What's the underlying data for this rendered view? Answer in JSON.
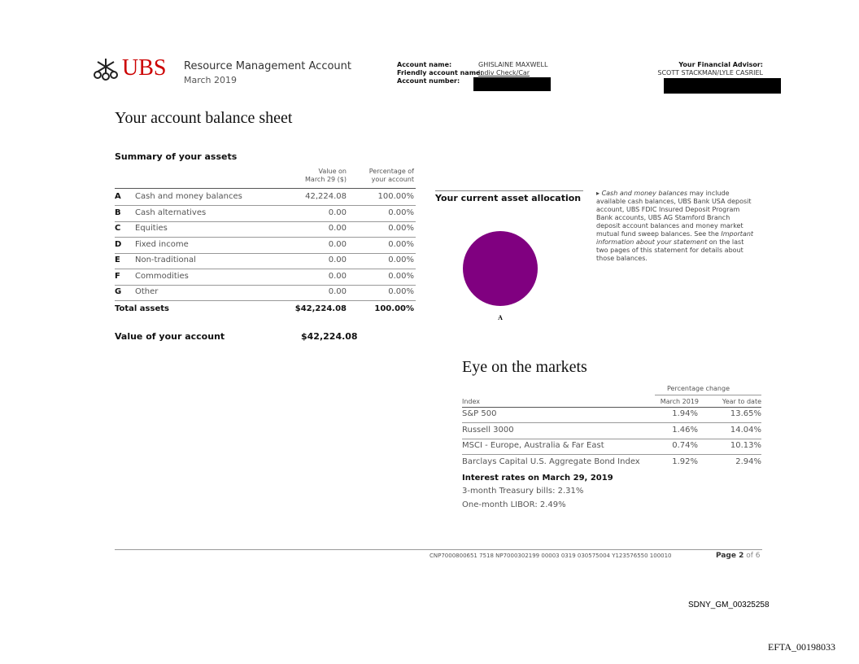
{
  "header": {
    "logo": "UBS",
    "account_type": "Resource Management Account",
    "period": "March 2019",
    "account_name_label": "Account name:",
    "account_name": "GHISLAINE MAXWELL",
    "friendly_name_label": "Friendly account name:",
    "friendly_name": "Indiv Check/Car",
    "account_number_label": "Account number:",
    "advisor_label": "Your Financial Advisor:",
    "advisor": "SCOTT STACKMAN/LYLE CASRIEL"
  },
  "title": "Your account balance sheet",
  "summary": {
    "title": "Summary of your assets",
    "columns": [
      [
        "Value on",
        "March 29 ($)"
      ],
      [
        "Percentage of",
        "your account"
      ]
    ],
    "rows": [
      [
        "A",
        "Cash and money balances",
        "42,224.08",
        "100.00%"
      ],
      [
        "B",
        "Cash alternatives",
        "0.00",
        "0.00%"
      ],
      [
        "C",
        "Equities",
        "0.00",
        "0.00%"
      ],
      [
        "D",
        "Fixed income",
        "0.00",
        "0.00%"
      ],
      [
        "E",
        "Non-traditional",
        "0.00",
        "0.00%"
      ],
      [
        "F",
        "Commodities",
        "0.00",
        "0.00%"
      ],
      [
        "G",
        "Other",
        "0.00",
        "0.00%"
      ]
    ],
    "total": [
      "Total assets",
      "$42,224.08",
      "100.00%"
    ],
    "account_value": [
      "Value of your account",
      "$42,224.08"
    ]
  },
  "allocation": {
    "title": "Your current asset allocation",
    "slices": [
      {
        "label": "A",
        "value": 100,
        "color": "#800080"
      }
    ]
  },
  "note": [
    "Cash and money balances",
    " may include available cash balances, UBS Bank USA deposit account, UBS FDIC Insured Deposit Program Bank accounts, UBS AG Stamford Branch deposit account balances and money market mutual fund sweep balances. See the ",
    "Important information about your statement",
    " on the last two pages of this statement for details about those balances."
  ],
  "markets": {
    "title": "Eye on the markets",
    "group_header": "Percentage change",
    "columns": [
      "Index",
      "March 2019",
      "Year to date"
    ],
    "rows": [
      [
        "S&P 500",
        "1.94%",
        "13.65%"
      ],
      [
        "Russell 3000",
        "1.46%",
        "14.04%"
      ],
      [
        "MSCI - Europe, Australia & Far East",
        "0.74%",
        "10.13%"
      ],
      [
        "Barclays Capital U.S. Aggregate Bond Index",
        "1.92%",
        "2.94%"
      ]
    ],
    "rates_title": "Interest rates on March 29, 2019",
    "rates": [
      "3-month Treasury bills: 2.31%",
      "One-month LIBOR: 2.49%"
    ]
  },
  "footer": {
    "code": "CNP7000800651 7518 NP7000302199 00003 0319 030575004 Y123576550 100010",
    "page": "Page 2",
    "of": "of 6"
  },
  "stamps": [
    "SDNY_GM_00325258",
    "EFTA_00198033"
  ]
}
